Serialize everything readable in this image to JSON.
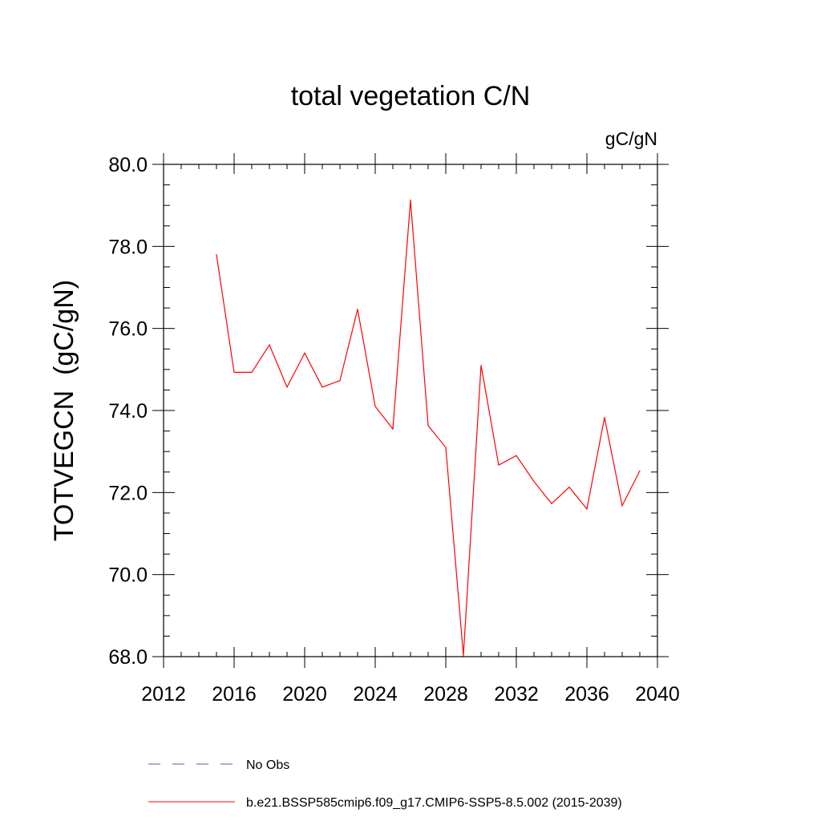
{
  "chart_data": {
    "type": "line",
    "title": "total vegetation C/N",
    "units_label": "gC/gN",
    "ylabel": "TOTVEGCN  (gC/gN)",
    "xlabel": "",
    "xlim": [
      2012,
      2040
    ],
    "ylim": [
      68,
      80
    ],
    "xticks": [
      2012,
      2016,
      2020,
      2024,
      2028,
      2032,
      2036,
      2040
    ],
    "xtick_labels": [
      "2012",
      "2016",
      "2020",
      "2024",
      "2028",
      "2032",
      "2036",
      "2040"
    ],
    "yticks": [
      68,
      70,
      72,
      74,
      76,
      78,
      80
    ],
    "ytick_labels": [
      "68.0",
      "70.0",
      "72.0",
      "74.0",
      "76.0",
      "78.0",
      "80.0"
    ],
    "series": [
      {
        "name": "b.e21.BSSP585cmip6.f09_g17.CMIP6-SSP5-8.5.002 (2015-2039)",
        "color": "#ff0000",
        "style": "solid",
        "x": [
          2015,
          2016,
          2017,
          2018,
          2019,
          2020,
          2021,
          2022,
          2023,
          2024,
          2025,
          2026,
          2027,
          2028,
          2029,
          2030,
          2031,
          2032,
          2033,
          2034,
          2035,
          2036,
          2037,
          2038,
          2039
        ],
        "values": [
          77.8,
          74.93,
          74.93,
          75.6,
          74.57,
          75.4,
          74.57,
          74.73,
          76.47,
          74.1,
          73.55,
          79.13,
          73.63,
          73.1,
          68.03,
          75.1,
          72.67,
          72.9,
          72.27,
          71.73,
          72.13,
          71.6,
          73.83,
          71.68,
          72.53
        ]
      }
    ],
    "legend": [
      {
        "label": "No Obs",
        "color": "#5a5aaa",
        "style": "dashed"
      },
      {
        "label": "b.e21.BSSP585cmip6.f09_g17.CMIP6-SSP5-8.5.002 (2015-2039)",
        "color": "#ff0000",
        "style": "solid"
      }
    ],
    "legend_position": "bottom"
  }
}
